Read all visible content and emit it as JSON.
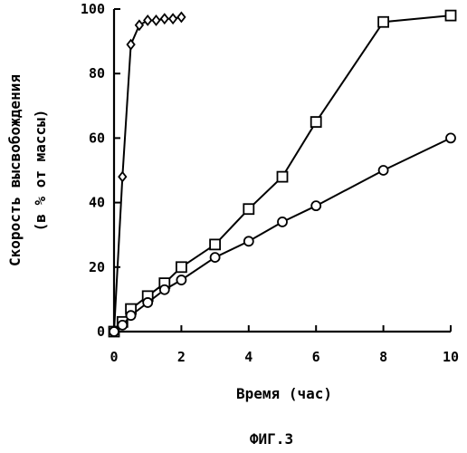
{
  "chart_data": {
    "type": "line",
    "xlabel": "Время (час)",
    "ylabel_lines": [
      "Скорость высвобождения",
      "(в % от массы)"
    ],
    "caption": "ФИГ.3",
    "xlim": [
      0,
      10
    ],
    "ylim": [
      0,
      100
    ],
    "x_ticks": [
      0,
      2,
      4,
      6,
      8,
      10
    ],
    "y_ticks": [
      0,
      20,
      40,
      60,
      80,
      100
    ],
    "grid": false,
    "legend": "none",
    "series": [
      {
        "marker": "diamond",
        "points": [
          [
            0,
            0
          ],
          [
            0.25,
            48
          ],
          [
            0.5,
            89
          ],
          [
            0.75,
            95
          ],
          [
            1.0,
            96.5
          ],
          [
            1.25,
            96.5
          ],
          [
            1.5,
            97
          ],
          [
            1.75,
            97
          ],
          [
            2.0,
            97.5
          ]
        ]
      },
      {
        "marker": "square",
        "points": [
          [
            0,
            0
          ],
          [
            0.25,
            3
          ],
          [
            0.5,
            7
          ],
          [
            1.0,
            11
          ],
          [
            1.5,
            15
          ],
          [
            2.0,
            20
          ],
          [
            3.0,
            27
          ],
          [
            4.0,
            38
          ],
          [
            5.0,
            48
          ],
          [
            6.0,
            65
          ],
          [
            8.0,
            96
          ],
          [
            10.0,
            98
          ]
        ]
      },
      {
        "marker": "circle",
        "points": [
          [
            0,
            0
          ],
          [
            0.25,
            2
          ],
          [
            0.5,
            5
          ],
          [
            1.0,
            9
          ],
          [
            1.5,
            13
          ],
          [
            2.0,
            16
          ],
          [
            3.0,
            23
          ],
          [
            4.0,
            28
          ],
          [
            5.0,
            34
          ],
          [
            6.0,
            39
          ],
          [
            8.0,
            50
          ],
          [
            10.0,
            60
          ]
        ]
      }
    ]
  }
}
